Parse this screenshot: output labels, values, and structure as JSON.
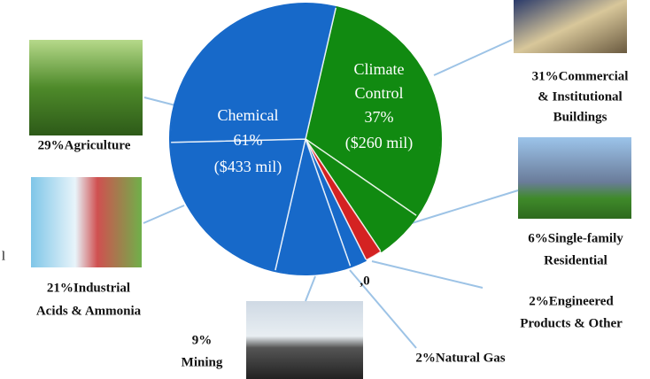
{
  "chart_data": {
    "type": "pie",
    "labels": [
      [
        "31%Commercial",
        "& Institutional",
        "Buildings"
      ],
      [
        "6%Single-family",
        "Residential"
      ],
      [
        "2%Engineered",
        "Products & Other"
      ],
      [
        "2%Natural Gas"
      ],
      [
        "9%",
        "Mining"
      ],
      [
        "21%Industrial",
        "Acids & Ammonia"
      ],
      [
        "29%Agriculture"
      ]
    ],
    "values": [
      31,
      6,
      2,
      2,
      9,
      21,
      29
    ],
    "colors": [
      "#118a11",
      "#118a11",
      "#d42222",
      "#1769c9",
      "#1769c9",
      "#1769c9",
      "#1769c9"
    ],
    "groups": [
      {
        "name": [
          "Climate",
          "Control"
        ],
        "value": 37,
        "value_label": "37%",
        "amount": "($260 mil)",
        "color": "#118a11"
      },
      {
        "name": [
          "Chemical"
        ],
        "value": 61,
        "value_label": "61%",
        "amount": "($433 mil)",
        "color": "#1769c9"
      }
    ],
    "annotations": [
      ",0",
      "l"
    ]
  }
}
